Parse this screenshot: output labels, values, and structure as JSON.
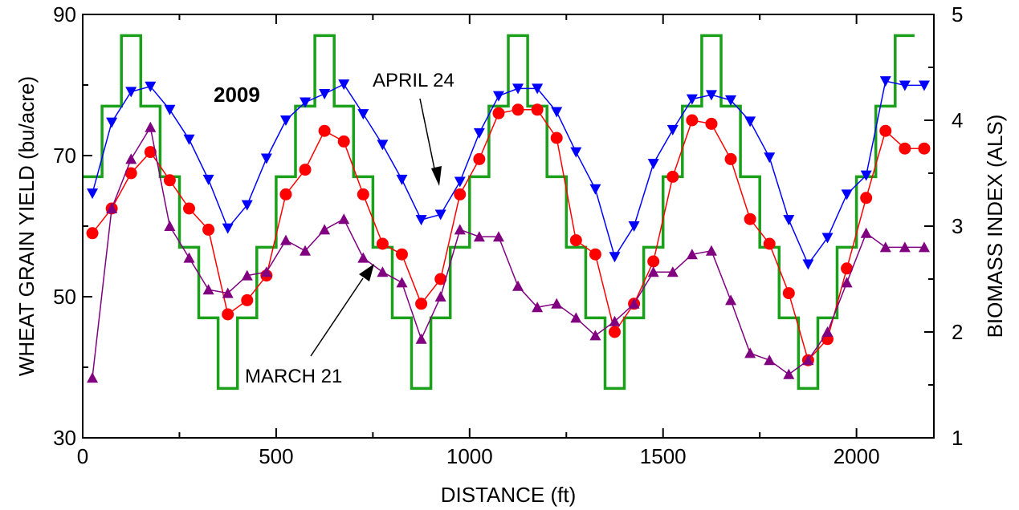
{
  "chart_data": {
    "type": "line",
    "xlabel": "DISTANCE (ft)",
    "ylabel": "WHEAT GRAIN YIELD (bu/acre)",
    "y2label": "BIOMASS INDEX (ALS)",
    "xlim": [
      0,
      2200
    ],
    "ylim": [
      30,
      90
    ],
    "y2lim": [
      1,
      5
    ],
    "xticks": [
      0,
      500,
      1000,
      1500,
      2000
    ],
    "yticks": [
      30,
      50,
      70,
      90
    ],
    "y2ticks": [
      1,
      2,
      3,
      4,
      5
    ],
    "grid": false,
    "annotations": [
      {
        "text": "2009",
        "bold": true
      },
      {
        "text": "APRIL 24",
        "bold": false
      },
      {
        "text": "MARCH 21",
        "bold": false
      }
    ],
    "series": [
      {
        "key": "yield",
        "axis": "left",
        "style": "step",
        "color": "#1aa01a",
        "points": [
          [
            0,
            67
          ],
          [
            50,
            67
          ],
          [
            50,
            77
          ],
          [
            100,
            77
          ],
          [
            100,
            87
          ],
          [
            150,
            87
          ],
          [
            150,
            77
          ],
          [
            200,
            77
          ],
          [
            200,
            67
          ],
          [
            250,
            67
          ],
          [
            250,
            57
          ],
          [
            300,
            57
          ],
          [
            300,
            47
          ],
          [
            350,
            47
          ],
          [
            350,
            37
          ],
          [
            400,
            37
          ],
          [
            400,
            47
          ],
          [
            450,
            47
          ],
          [
            450,
            57
          ],
          [
            500,
            57
          ],
          [
            500,
            67
          ],
          [
            550,
            67
          ],
          [
            550,
            77
          ],
          [
            600,
            77
          ],
          [
            600,
            87
          ],
          [
            650,
            87
          ],
          [
            650,
            77
          ],
          [
            700,
            77
          ],
          [
            700,
            67
          ],
          [
            750,
            67
          ],
          [
            750,
            57
          ],
          [
            800,
            57
          ],
          [
            800,
            47
          ],
          [
            850,
            47
          ],
          [
            850,
            37
          ],
          [
            900,
            37
          ],
          [
            900,
            47
          ],
          [
            950,
            47
          ],
          [
            950,
            57
          ],
          [
            1000,
            57
          ],
          [
            1000,
            67
          ],
          [
            1050,
            67
          ],
          [
            1050,
            77
          ],
          [
            1100,
            77
          ],
          [
            1100,
            87
          ],
          [
            1150,
            87
          ],
          [
            1150,
            77
          ],
          [
            1200,
            77
          ],
          [
            1200,
            67
          ],
          [
            1250,
            67
          ],
          [
            1250,
            57
          ],
          [
            1300,
            57
          ],
          [
            1300,
            47
          ],
          [
            1350,
            47
          ],
          [
            1350,
            37
          ],
          [
            1400,
            37
          ],
          [
            1400,
            47
          ],
          [
            1450,
            47
          ],
          [
            1450,
            57
          ],
          [
            1500,
            57
          ],
          [
            1500,
            67
          ],
          [
            1550,
            67
          ],
          [
            1550,
            77
          ],
          [
            1600,
            77
          ],
          [
            1600,
            87
          ],
          [
            1650,
            87
          ],
          [
            1650,
            77
          ],
          [
            1700,
            77
          ],
          [
            1700,
            67
          ],
          [
            1750,
            67
          ],
          [
            1750,
            57
          ],
          [
            1800,
            57
          ],
          [
            1800,
            47
          ],
          [
            1850,
            47
          ],
          [
            1850,
            37
          ],
          [
            1900,
            37
          ],
          [
            1900,
            47
          ],
          [
            1950,
            47
          ],
          [
            1950,
            57
          ],
          [
            2000,
            57
          ],
          [
            2000,
            67
          ],
          [
            2050,
            67
          ],
          [
            2050,
            77
          ],
          [
            2100,
            77
          ],
          [
            2100,
            87
          ],
          [
            2150,
            87
          ]
        ]
      },
      {
        "key": "april24",
        "axis": "right",
        "style": "line",
        "marker": "triangle-down",
        "color": "#0000ff",
        "x": [
          25,
          75,
          125,
          175,
          225,
          275,
          325,
          375,
          425,
          475,
          525,
          575,
          625,
          675,
          725,
          775,
          825,
          875,
          925,
          975,
          1025,
          1075,
          1125,
          1175,
          1225,
          1275,
          1325,
          1375,
          1425,
          1475,
          1525,
          1575,
          1625,
          1675,
          1725,
          1775,
          1825,
          1875,
          1925,
          1975,
          2025,
          2075,
          2125,
          2175
        ],
        "values": [
          3.31,
          3.98,
          4.27,
          4.32,
          4.1,
          3.82,
          3.44,
          2.98,
          3.2,
          3.64,
          4.0,
          4.17,
          4.25,
          4.34,
          4.06,
          3.77,
          3.44,
          3.06,
          3.11,
          3.42,
          3.88,
          4.23,
          4.3,
          4.3,
          4.08,
          3.7,
          3.35,
          2.71,
          3.0,
          3.59,
          3.91,
          4.2,
          4.24,
          4.19,
          3.99,
          3.65,
          3.06,
          2.64,
          2.89,
          3.3,
          3.48,
          4.37,
          4.33,
          4.33
        ]
      },
      {
        "key": "april24_red",
        "axis": "left",
        "style": "line",
        "marker": "circle",
        "color": "#ff0000",
        "x": [
          25,
          75,
          125,
          175,
          225,
          275,
          325,
          375,
          425,
          475,
          525,
          575,
          625,
          675,
          725,
          775,
          825,
          875,
          925,
          975,
          1025,
          1075,
          1125,
          1175,
          1225,
          1275,
          1325,
          1375,
          1425,
          1475,
          1525,
          1575,
          1625,
          1675,
          1725,
          1775,
          1825,
          1875,
          1925,
          1975,
          2025,
          2075,
          2125,
          2175
        ],
        "values": [
          59,
          62.5,
          67.5,
          70.5,
          66.5,
          62.5,
          59.5,
          47.5,
          49.5,
          53,
          64.5,
          68,
          73.5,
          72,
          64.5,
          57.5,
          56,
          49,
          52.5,
          64.5,
          69.5,
          76,
          76.5,
          76.5,
          72.5,
          58,
          56,
          45,
          49,
          55,
          67,
          75,
          74.5,
          69.5,
          61,
          57.5,
          50.5,
          41,
          44,
          54,
          64,
          73.5,
          71,
          71
        ]
      },
      {
        "key": "march21",
        "axis": "left",
        "style": "line",
        "marker": "triangle-up",
        "color": "#800080",
        "x": [
          25,
          75,
          125,
          175,
          225,
          275,
          325,
          375,
          425,
          475,
          525,
          575,
          625,
          675,
          725,
          775,
          825,
          875,
          925,
          975,
          1025,
          1075,
          1125,
          1175,
          1225,
          1275,
          1325,
          1375,
          1425,
          1475,
          1525,
          1575,
          1625,
          1675,
          1725,
          1775,
          1825,
          1875,
          1925,
          1975,
          2025,
          2075,
          2125,
          2175
        ],
        "values": [
          38.5,
          62.5,
          69.5,
          74,
          60,
          55.5,
          51,
          50.5,
          53,
          53.5,
          58,
          56.5,
          59.5,
          61,
          55.5,
          53.5,
          52,
          44,
          50,
          59.5,
          58.5,
          58.5,
          51.5,
          48.5,
          49,
          47,
          44.5,
          46.5,
          49,
          53.5,
          53.5,
          56,
          56.5,
          49.5,
          42,
          41,
          39,
          41,
          45,
          52,
          59,
          57,
          57,
          57
        ]
      }
    ]
  }
}
